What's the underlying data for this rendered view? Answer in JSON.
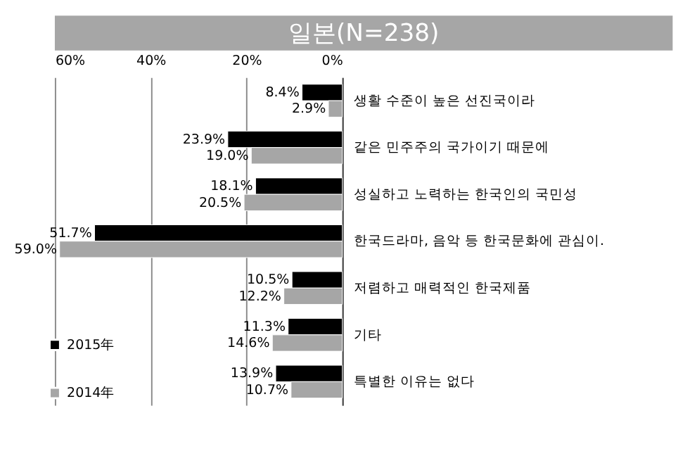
{
  "chart_data": {
    "type": "bar",
    "orientation": "horizontal",
    "title": "일본(N=238)",
    "categories": [
      "생활 수준이 높은 선진국이라",
      "같은 민주주의 국가이기 때문에",
      "성실하고 노력하는 한국인의 국민성",
      "한국드라마, 음악 등 한국문화에 관심이.",
      "저렴하고 매력적인 한국제품",
      "기타",
      "특별한 이유는 없다"
    ],
    "series": [
      {
        "name": "2015年",
        "color": "#000000",
        "values": [
          8.4,
          23.9,
          18.1,
          51.7,
          10.5,
          11.3,
          13.9
        ],
        "value_labels": [
          "8.4%",
          "23.9%",
          "18.1%",
          "51.7%",
          "10.5%",
          "11.3%",
          "13.9%"
        ]
      },
      {
        "name": "2014年",
        "color": "#a6a6a6",
        "values": [
          2.9,
          19.0,
          20.5,
          59.0,
          12.2,
          14.6,
          10.7
        ],
        "value_labels": [
          "2.9%",
          "19.0%",
          "20.5%",
          "59.0%",
          "12.2%",
          "14.6%",
          "10.7%"
        ]
      }
    ],
    "xlim": [
      60,
      0
    ],
    "xticks": [
      {
        "value": 60,
        "label": "60%"
      },
      {
        "value": 40,
        "label": "40%"
      },
      {
        "value": 20,
        "label": "20%"
      },
      {
        "value": 0,
        "label": "0%"
      }
    ],
    "grid": "x",
    "legend": "bottom left"
  }
}
